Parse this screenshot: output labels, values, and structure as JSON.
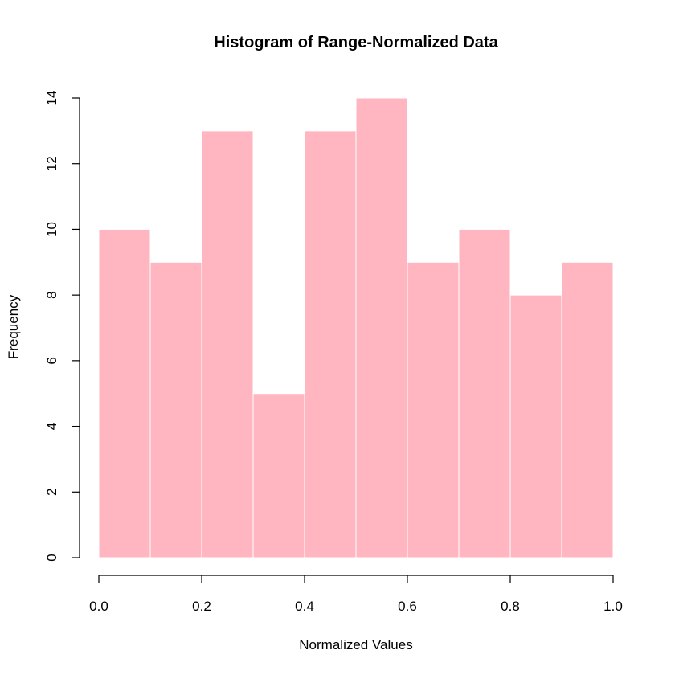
{
  "chart_data": {
    "type": "bar",
    "title": "Histogram of Range-Normalized Data",
    "xlabel": "Normalized Values",
    "ylabel": "Frequency",
    "bins": [
      {
        "start": 0.0,
        "end": 0.1,
        "count": 10
      },
      {
        "start": 0.1,
        "end": 0.2,
        "count": 9
      },
      {
        "start": 0.2,
        "end": 0.3,
        "count": 13
      },
      {
        "start": 0.3,
        "end": 0.4,
        "count": 5
      },
      {
        "start": 0.4,
        "end": 0.5,
        "count": 13
      },
      {
        "start": 0.5,
        "end": 0.6,
        "count": 14
      },
      {
        "start": 0.6,
        "end": 0.7,
        "count": 9
      },
      {
        "start": 0.7,
        "end": 0.8,
        "count": 10
      },
      {
        "start": 0.8,
        "end": 0.9,
        "count": 8
      },
      {
        "start": 0.9,
        "end": 1.0,
        "count": 9
      }
    ],
    "xlim": [
      0.0,
      1.0
    ],
    "ylim": [
      0,
      14
    ],
    "x_ticks": [
      "0.0",
      "0.2",
      "0.4",
      "0.6",
      "0.8",
      "1.0"
    ],
    "y_ticks": [
      "0",
      "2",
      "4",
      "6",
      "8",
      "10",
      "12",
      "14"
    ],
    "grid": false,
    "bar_color": "#FFB6C1",
    "bar_border_color": "#FFFFFF"
  }
}
